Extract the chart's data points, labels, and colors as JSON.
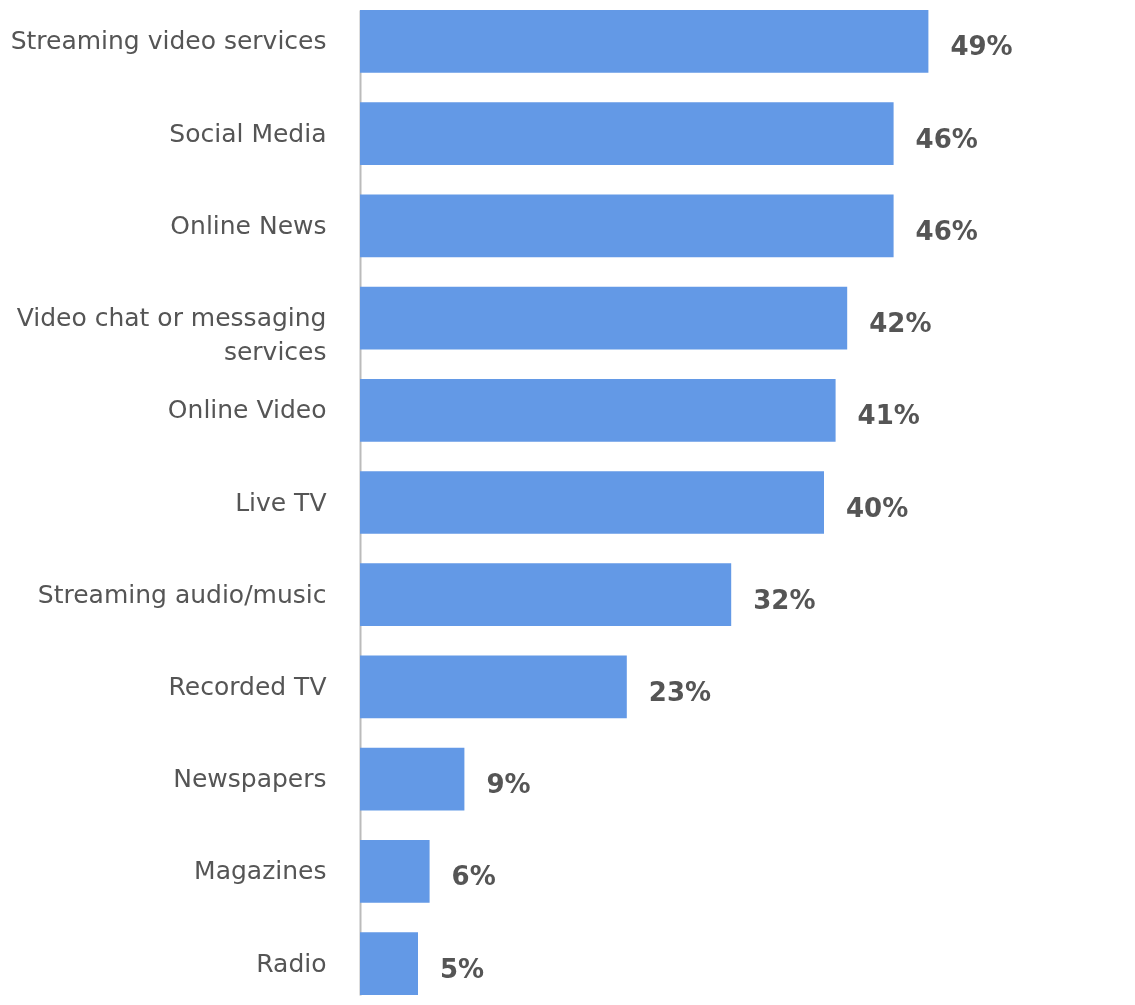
{
  "chart_data": {
    "type": "bar",
    "orientation": "horizontal",
    "categories": [
      "Streaming video services",
      "Social Media",
      "Online News",
      "Video chat or messaging services",
      "Online Video",
      "Live TV",
      "Streaming audio/music",
      "Recorded TV",
      "Newspapers",
      "Magazines",
      "Radio"
    ],
    "values": [
      49,
      46,
      46,
      42,
      41,
      40,
      32,
      23,
      9,
      6,
      5
    ],
    "value_labels": [
      "49%",
      "46%",
      "46%",
      "42%",
      "41%",
      "40%",
      "32%",
      "23%",
      "9%",
      "6%",
      "5%"
    ],
    "color": "#6399e6",
    "tick_labels": "y"
  }
}
